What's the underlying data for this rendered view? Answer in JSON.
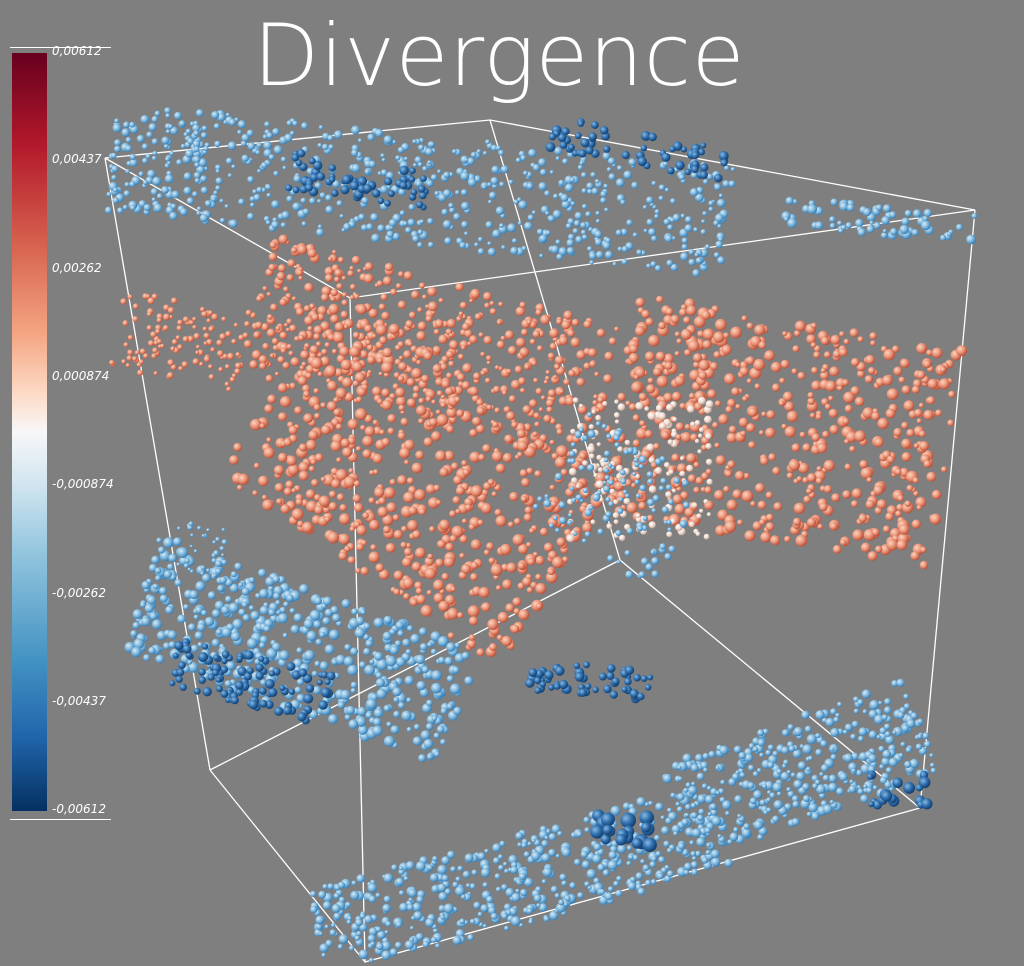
{
  "title": "Divergence",
  "colorbar": {
    "colormap": "cool-to-warm",
    "colors": [
      "#67001f",
      "#b2182b",
      "#d6604d",
      "#f4a582",
      "#fddbc7",
      "#f7f7f7",
      "#d1e5f0",
      "#92c5de",
      "#4393c3",
      "#2166ac",
      "#053061"
    ],
    "range": [
      -0.00612,
      0.00612
    ],
    "ticks": [
      "0,00612",
      "0,00437",
      "0,00262",
      "0,000874",
      "-0,000874",
      "-0,00262",
      "-0,00437",
      "-0,00612"
    ]
  },
  "scene": {
    "type": "3d-glyph-scatter",
    "glyph": "sphere",
    "bounding_box": true,
    "background": "#7f7f7f"
  }
}
